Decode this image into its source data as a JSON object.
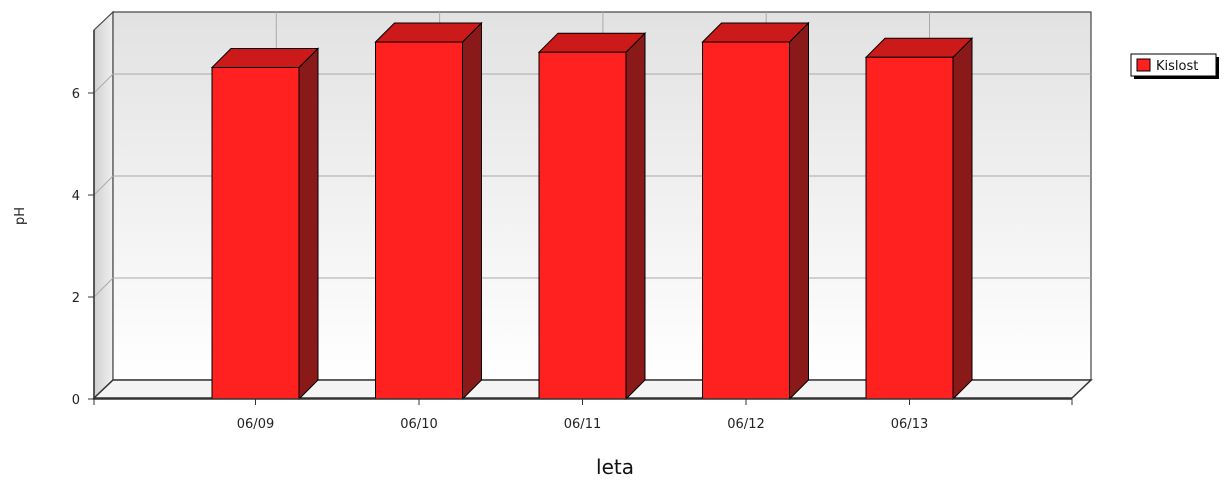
{
  "chart_data": {
    "type": "bar",
    "categories": [
      "06/09",
      "06/10",
      "06/11",
      "06/12",
      "06/13"
    ],
    "series": [
      {
        "name": "Kislost",
        "values": [
          6.5,
          7.0,
          6.8,
          7.0,
          6.7
        ],
        "color": "#ff2020"
      }
    ],
    "xlabel": "leta",
    "ylabel": "pH",
    "yticks": [
      0,
      2,
      4,
      6
    ],
    "ylim": [
      0,
      7
    ],
    "grid": true,
    "legend_position": "top-right",
    "three_d": true
  },
  "colors": {
    "bar_front": "#ff2020",
    "bar_top": "#cc1a1a",
    "bar_side": "#8a1a1a",
    "plot_bg_top": "#e4e4e4",
    "plot_bg_bottom": "#ffffff"
  }
}
